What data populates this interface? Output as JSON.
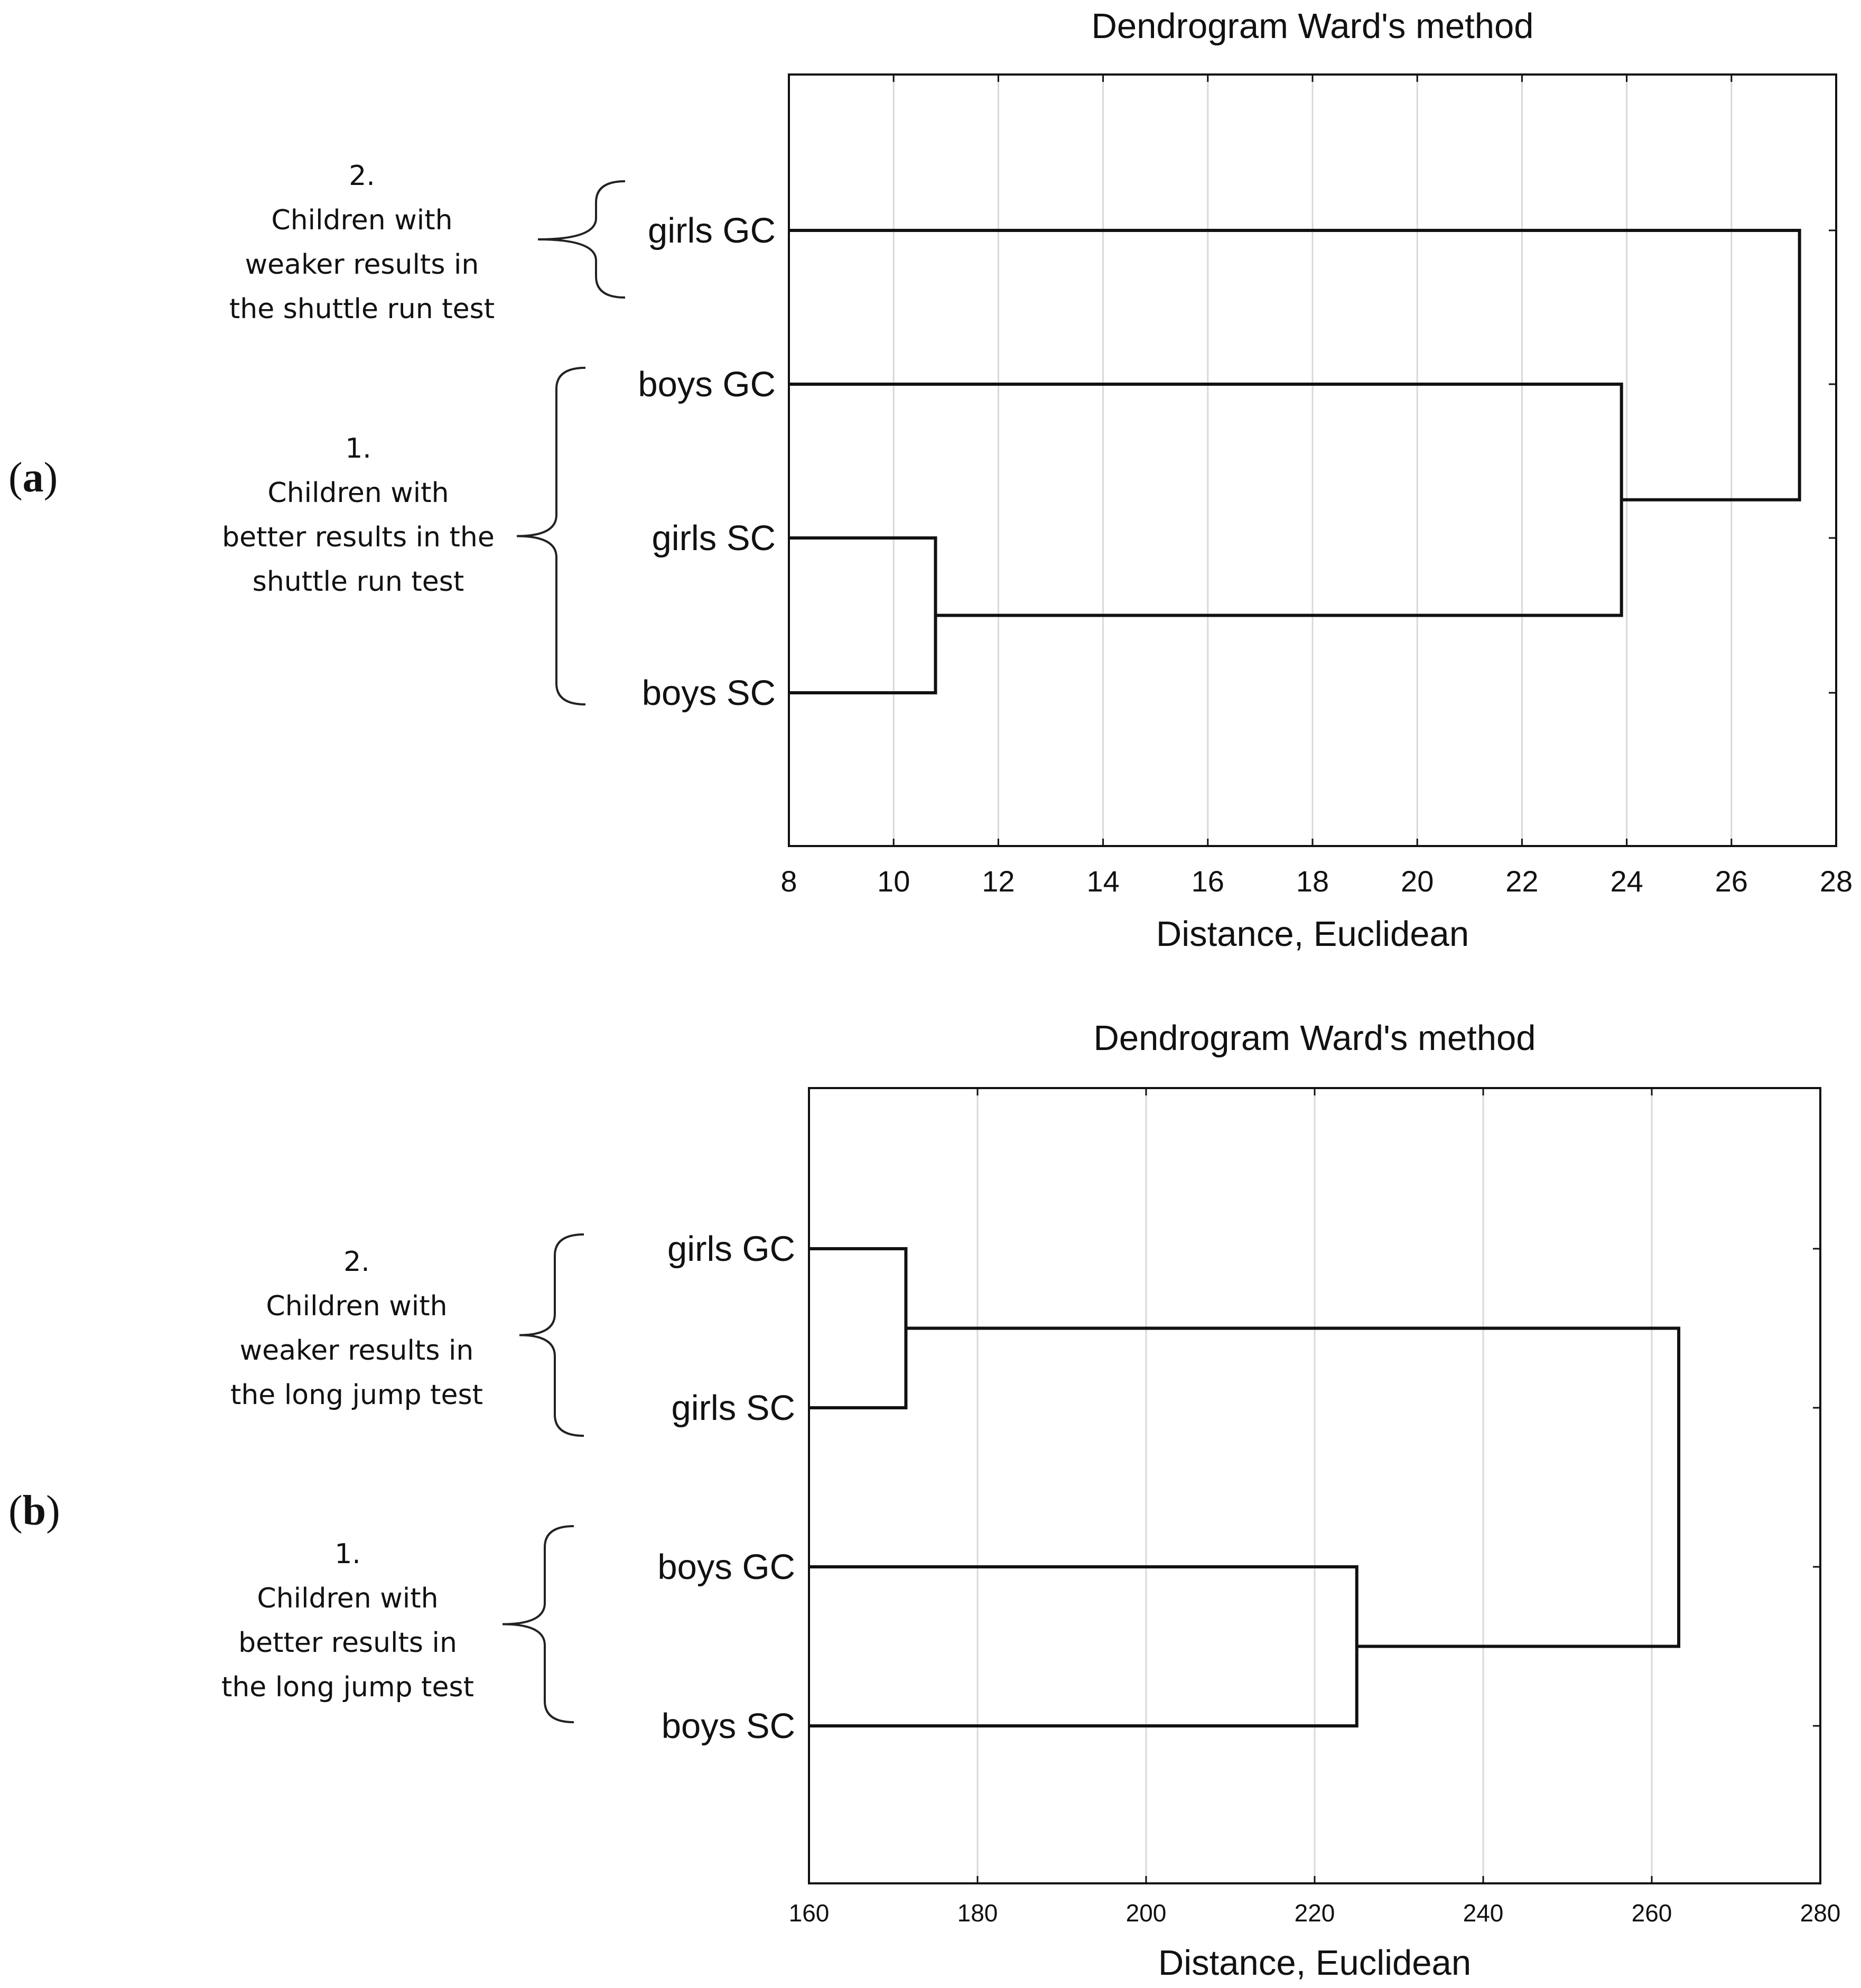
{
  "chart_data": [
    {
      "id": "a",
      "type": "dendrogram",
      "panel_label": "a",
      "title": "Dendrogram Ward's method",
      "xlabel": "Distance, Euclidean",
      "xlim": [
        8,
        28
      ],
      "xticks": [
        8,
        10,
        12,
        14,
        16,
        18,
        20,
        22,
        24,
        26,
        28
      ],
      "leaves": [
        "girls GC",
        "boys GC",
        "girls SC",
        "boys SC"
      ],
      "merges": [
        {
          "left": "girls SC",
          "right": "boys SC",
          "distance": 10.8
        },
        {
          "left": "boys GC",
          "right": "cluster(girls SC, boys SC)",
          "distance": 23.9
        },
        {
          "left": "girls GC",
          "right": "cluster(boys GC, girls SC, boys SC)",
          "distance": 27.3
        }
      ],
      "groups": [
        {
          "number": "2.",
          "lines": [
            "Children with",
            "weaker results in",
            "the shuttle run test"
          ],
          "leaves": [
            "girls GC"
          ]
        },
        {
          "number": "1.",
          "lines": [
            "Children with",
            "better results in the",
            "shuttle run test"
          ],
          "leaves": [
            "boys GC",
            "girls SC",
            "boys SC"
          ]
        }
      ]
    },
    {
      "id": "b",
      "type": "dendrogram",
      "panel_label": "b",
      "title": "Dendrogram Ward's method",
      "xlabel": "Distance, Euclidean",
      "xlim": [
        160,
        280
      ],
      "xticks": [
        160,
        180,
        200,
        220,
        240,
        260,
        280
      ],
      "leaves": [
        "girls GC",
        "girls SC",
        "boys GC",
        "boys SC"
      ],
      "merges": [
        {
          "left": "girls GC",
          "right": "girls SC",
          "distance": 171.5
        },
        {
          "left": "boys GC",
          "right": "boys SC",
          "distance": 225
        },
        {
          "left": "cluster(girls GC, girls SC)",
          "right": "cluster(boys GC, boys SC)",
          "distance": 263.2
        }
      ],
      "groups": [
        {
          "number": "2.",
          "lines": [
            "Children with",
            "weaker results in",
            "the long jump test"
          ],
          "leaves": [
            "girls GC",
            "girls SC"
          ]
        },
        {
          "number": "1.",
          "lines": [
            "Children with",
            "better results in",
            "the long jump test"
          ],
          "leaves": [
            "boys GC",
            "boys SC"
          ]
        }
      ]
    }
  ]
}
